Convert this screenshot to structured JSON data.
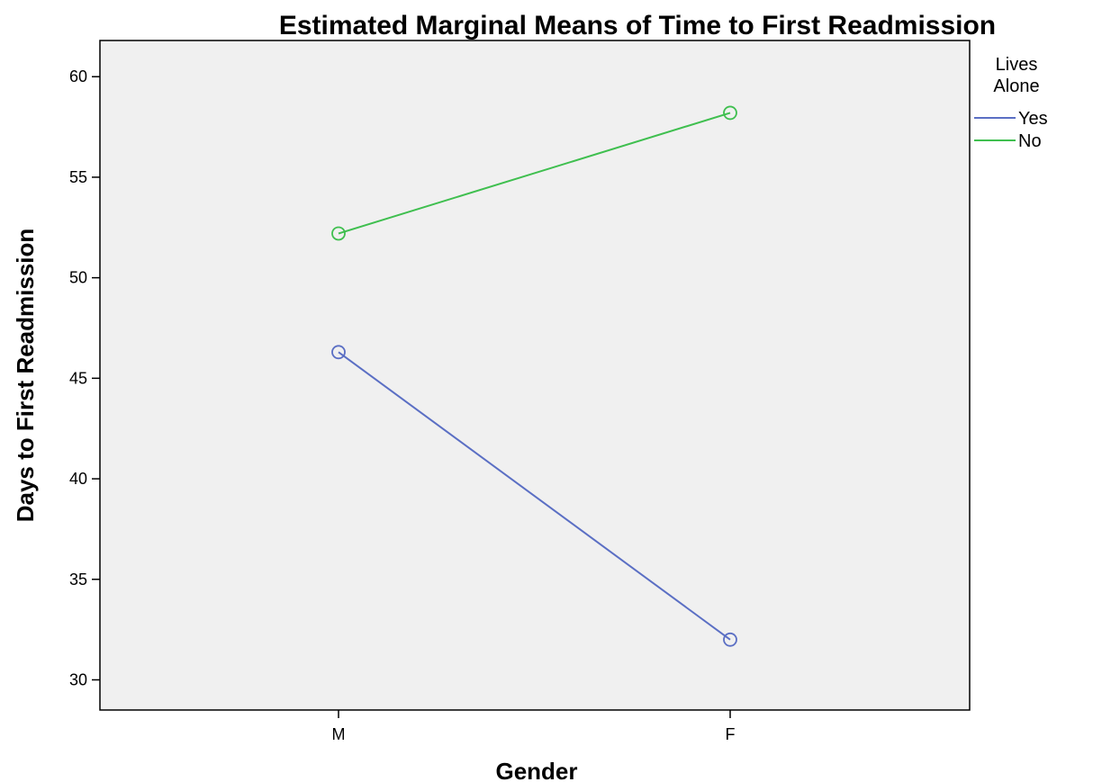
{
  "chart_data": {
    "type": "line",
    "title": "Estimated Marginal Means of Time to First Readmission",
    "xlabel": "Gender",
    "ylabel": "Days to First Readmission",
    "categories": [
      "M",
      "F"
    ],
    "ylim": [
      28.5,
      61.8
    ],
    "yticks": [
      "30",
      "35",
      "40",
      "45",
      "50",
      "55",
      "60"
    ],
    "grid": false,
    "legend": {
      "title_lines": [
        "Lives",
        "Alone"
      ],
      "placement": "right"
    },
    "series": [
      {
        "name": "Yes",
        "values": [
          46.3,
          32.0
        ],
        "color": "#5b6fc4"
      },
      {
        "name": "No",
        "values": [
          52.2,
          58.2
        ],
        "color": "#3fbf4f"
      }
    ],
    "plot_background": "#f0f0f0",
    "marker": "open-circle"
  }
}
